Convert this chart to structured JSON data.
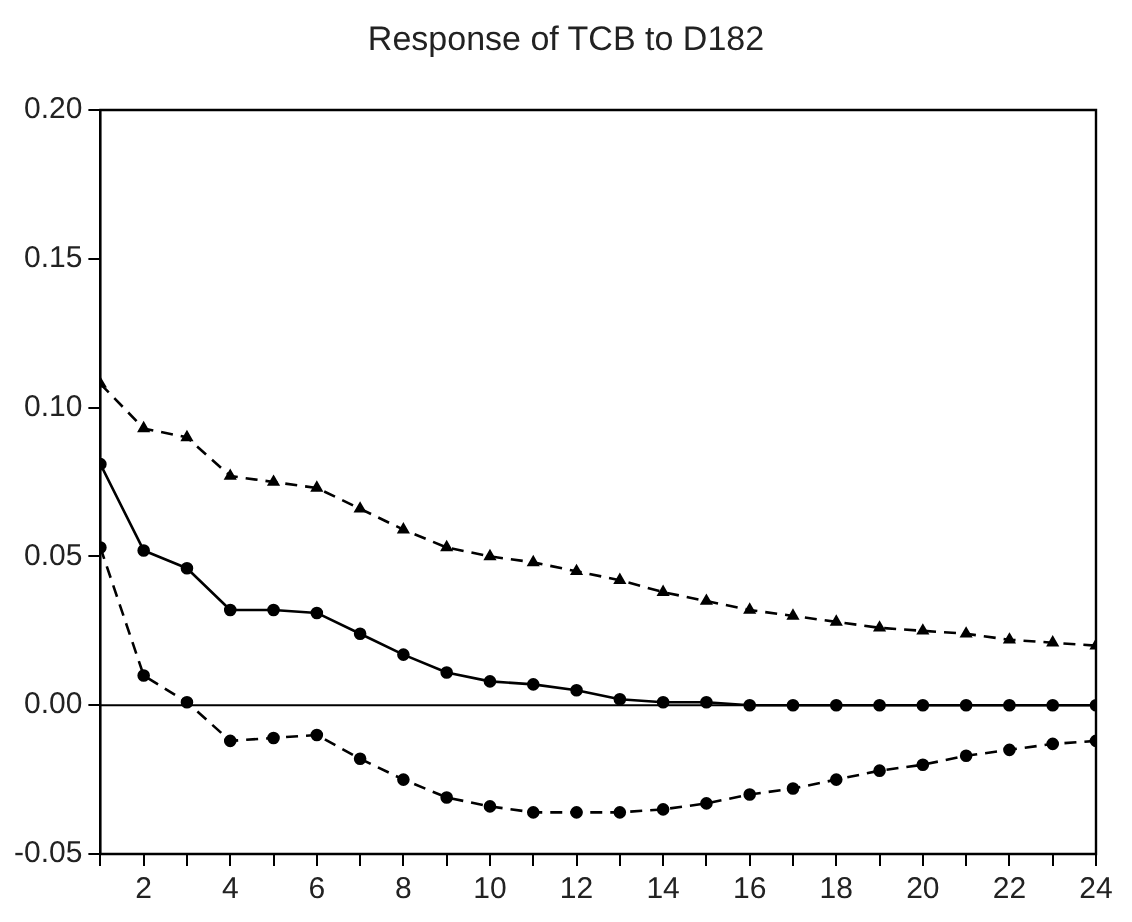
{
  "chart_data": {
    "type": "line",
    "title": "Response of TCB to D182",
    "x": [
      1,
      2,
      3,
      4,
      5,
      6,
      7,
      8,
      9,
      10,
      11,
      12,
      13,
      14,
      15,
      16,
      17,
      18,
      19,
      20,
      21,
      22,
      23,
      24
    ],
    "series": [
      {
        "color": "#000000",
        "marker": "circle",
        "line_style": "solid",
        "values": [
          0.081,
          0.052,
          0.046,
          0.032,
          0.032,
          0.031,
          0.024,
          0.017,
          0.011,
          0.008,
          0.007,
          0.005,
          0.002,
          0.001,
          0.001,
          0.0,
          0.0,
          0.0,
          0.0,
          0.0,
          0.0,
          0.0,
          0.0,
          0.0
        ]
      },
      {
        "color": "#000000",
        "marker": "triangle",
        "line_style": "dashed",
        "values": [
          0.108,
          0.093,
          0.09,
          0.077,
          0.075,
          0.073,
          0.066,
          0.059,
          0.053,
          0.05,
          0.048,
          0.045,
          0.042,
          0.038,
          0.035,
          0.032,
          0.03,
          0.028,
          0.026,
          0.025,
          0.024,
          0.022,
          0.021,
          0.02
        ]
      },
      {
        "color": "#000000",
        "marker": "circle",
        "line_style": "dashed",
        "values": [
          0.053,
          0.01,
          0.001,
          -0.012,
          -0.011,
          -0.01,
          -0.018,
          -0.025,
          -0.031,
          -0.034,
          -0.036,
          -0.036,
          -0.036,
          -0.035,
          -0.033,
          -0.03,
          -0.028,
          -0.025,
          -0.022,
          -0.02,
          -0.017,
          -0.015,
          -0.013,
          -0.012
        ]
      }
    ],
    "xlim": [
      1,
      24
    ],
    "xticks": [
      {
        "value": 1,
        "label": null
      },
      2,
      {
        "value": 3,
        "label": null
      },
      4,
      {
        "value": 5,
        "label": null
      },
      6,
      {
        "value": 7,
        "label": null
      },
      8,
      {
        "value": 9,
        "label": null
      },
      10,
      {
        "value": 11,
        "label": null
      },
      12,
      {
        "value": 13,
        "label": null
      },
      14,
      {
        "value": 15,
        "label": null
      },
      16,
      {
        "value": 17,
        "label": null
      },
      18,
      {
        "value": 19,
        "label": null
      },
      20,
      {
        "value": 21,
        "label": null
      },
      22,
      {
        "value": 23,
        "label": null
      },
      24
    ],
    "ylim": [
      -0.05,
      0.2
    ],
    "yticks": [
      {
        "value": -0.05,
        "label": "-0.05"
      },
      {
        "value": 0,
        "label": "0.00"
      },
      {
        "value": 0.05,
        "label": "0.05"
      },
      {
        "value": 0.1,
        "label": "0.10"
      },
      {
        "value": 0.15,
        "label": "0.15"
      },
      {
        "value": 0.2,
        "label": "0.20"
      }
    ],
    "ref_lines": [
      {
        "axis": "y",
        "value": 0,
        "color": "#000000"
      }
    ],
    "grid": false,
    "legend": false
  }
}
